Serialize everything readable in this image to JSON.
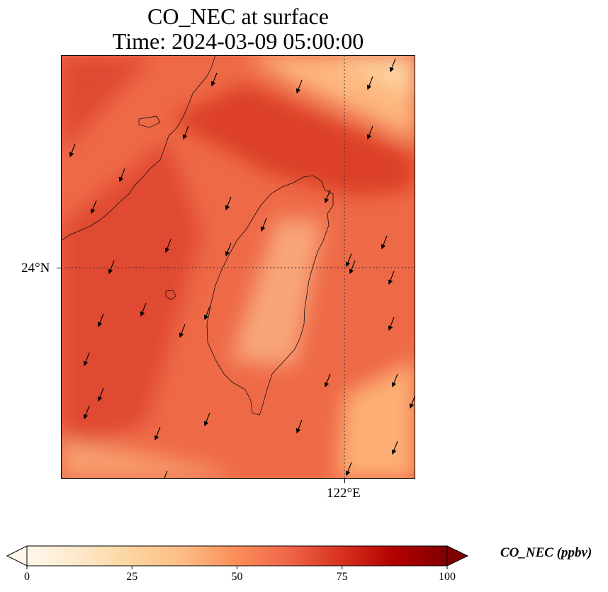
{
  "title": {
    "line1": "CO_NEC at surface",
    "line2": "Time: 2024-03-09 05:00:00"
  },
  "map": {
    "region": "Taiwan",
    "variable": "CO_NEC",
    "level": "surface",
    "lon_range": [
      119.0,
      122.75
    ],
    "lat_range": [
      21.75,
      26.25
    ],
    "gridline_lon": 122,
    "gridline_lat": 24,
    "lon_tick_label": "122°E",
    "lat_tick_label": "24°N",
    "field_description": "high concentrations (70-80 ppbv) over Taiwan Strait and southwest; band of high values in northeast; low (15-30) over Central Mountain Range and northeast/southeast corners",
    "wind_vectors": "northeasterly flow, arrows pointing southwest"
  },
  "colorbar": {
    "label": "CO_NEC (ppbv)",
    "min": 0,
    "max": 100,
    "extend": "both",
    "colormap": "OrRd",
    "colors": [
      "#fff7ec",
      "#fee8c8",
      "#fdd49e",
      "#fdbb84",
      "#fc8d59",
      "#ef6548",
      "#d7301f",
      "#b30000",
      "#7f0000"
    ],
    "ticks": [
      {
        "value": 0,
        "label": "0"
      },
      {
        "value": 25,
        "label": "25"
      },
      {
        "value": 50,
        "label": "50"
      },
      {
        "value": 75,
        "label": "75"
      },
      {
        "value": 100,
        "label": "100"
      }
    ]
  }
}
